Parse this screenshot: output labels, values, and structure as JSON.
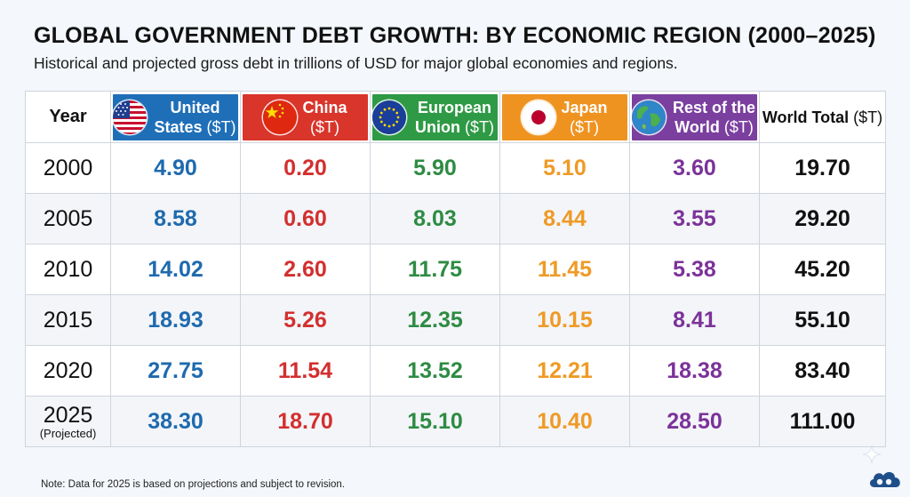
{
  "title": "GLOBAL GOVERNMENT DEBT GROWTH: BY ECONOMIC REGION (2000–2025)",
  "subtitle": "Historical and projected gross debt in trillions of USD for major global economies and regions.",
  "header": {
    "year": "Year",
    "us": {
      "name": "United States",
      "unit": "($T)",
      "color": "#1f6fb8",
      "icon": "us-flag-icon"
    },
    "china": {
      "name": "China",
      "unit": "($T)",
      "color": "#d9352b",
      "icon": "china-flag-icon"
    },
    "eu": {
      "name": "European Union",
      "unit": "($T)",
      "color": "#2f9a45",
      "icon": "eu-flag-icon"
    },
    "japan": {
      "name": "Japan",
      "unit": "($T)",
      "color": "#ef9320",
      "icon": "japan-flag-icon"
    },
    "rest": {
      "name": "Rest of the World",
      "unit": "($T)",
      "color": "#7b3fa0",
      "icon": "globe-icon"
    },
    "world": {
      "name": "World Total",
      "unit": "($T)"
    }
  },
  "rows": [
    {
      "year": "2000",
      "note": "",
      "us": "4.90",
      "china": "0.20",
      "eu": "5.90",
      "japan": "5.10",
      "rest": "3.60",
      "world": "19.70"
    },
    {
      "year": "2005",
      "note": "",
      "us": "8.58",
      "china": "0.60",
      "eu": "8.03",
      "japan": "8.44",
      "rest": "3.55",
      "world": "29.20"
    },
    {
      "year": "2010",
      "note": "",
      "us": "14.02",
      "china": "2.60",
      "eu": "11.75",
      "japan": "11.45",
      "rest": "5.38",
      "world": "45.20"
    },
    {
      "year": "2015",
      "note": "",
      "us": "18.93",
      "china": "5.26",
      "eu": "12.35",
      "japan": "10.15",
      "rest": "8.41",
      "world": "55.10"
    },
    {
      "year": "2020",
      "note": "",
      "us": "27.75",
      "china": "11.54",
      "eu": "13.52",
      "japan": "12.21",
      "rest": "18.38",
      "world": "83.40"
    },
    {
      "year": "2025",
      "note": "(Projected)",
      "us": "38.30",
      "china": "18.70",
      "eu": "15.10",
      "japan": "10.40",
      "rest": "28.50",
      "world": "111.00"
    }
  ],
  "footnote": "Note: Data for 2025 is based on projections and subject to revision.",
  "chart_data": {
    "type": "table",
    "title": "GLOBAL GOVERNMENT DEBT GROWTH: BY ECONOMIC REGION (2000–2025)",
    "subtitle": "Historical and projected gross debt in trillions of USD for major global economies and regions.",
    "columns": [
      "Year",
      "United States ($T)",
      "China ($T)",
      "European Union ($T)",
      "Japan ($T)",
      "Rest of the World ($T)",
      "World Total ($T)"
    ],
    "categories": [
      "2000",
      "2005",
      "2010",
      "2015",
      "2020",
      "2025"
    ],
    "series": [
      {
        "name": "United States ($T)",
        "values": [
          4.9,
          8.58,
          14.02,
          18.93,
          27.75,
          38.3
        ]
      },
      {
        "name": "China ($T)",
        "values": [
          0.2,
          0.6,
          2.6,
          5.26,
          11.54,
          18.7
        ]
      },
      {
        "name": "European Union ($T)",
        "values": [
          5.9,
          8.03,
          11.75,
          12.35,
          13.52,
          15.1
        ]
      },
      {
        "name": "Japan ($T)",
        "values": [
          5.1,
          8.44,
          11.45,
          10.15,
          12.21,
          10.4
        ]
      },
      {
        "name": "Rest of the World ($T)",
        "values": [
          3.6,
          3.55,
          5.38,
          8.41,
          18.38,
          28.5
        ]
      },
      {
        "name": "World Total ($T)",
        "values": [
          19.7,
          29.2,
          45.2,
          55.1,
          83.4,
          111.0
        ]
      }
    ]
  }
}
